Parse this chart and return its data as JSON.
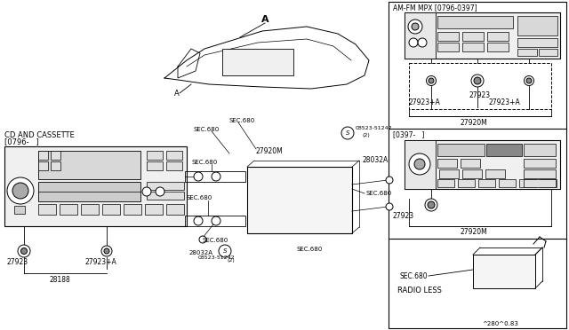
{
  "bg_color": "#ffffff",
  "lc": "#000000",
  "labels": {
    "cd_cassette_1": "CD AND CASSETTE",
    "cd_cassette_2": "[0796-   ]",
    "amfm": "AM-FM MPX [0796-0397]",
    "date_mid": "[0397-   ]",
    "radio_less": "RADIO LESS",
    "label_A_top": "A",
    "label_A_dash": "A",
    "27920M": "27920M",
    "27923": "27923",
    "27923A": "27923+A",
    "28032A": "28032A",
    "28188": "28188",
    "sec680": "SEC.680",
    "screw": "08523-51242",
    "screw2": "(2)",
    "figref": "^280^0.83"
  }
}
